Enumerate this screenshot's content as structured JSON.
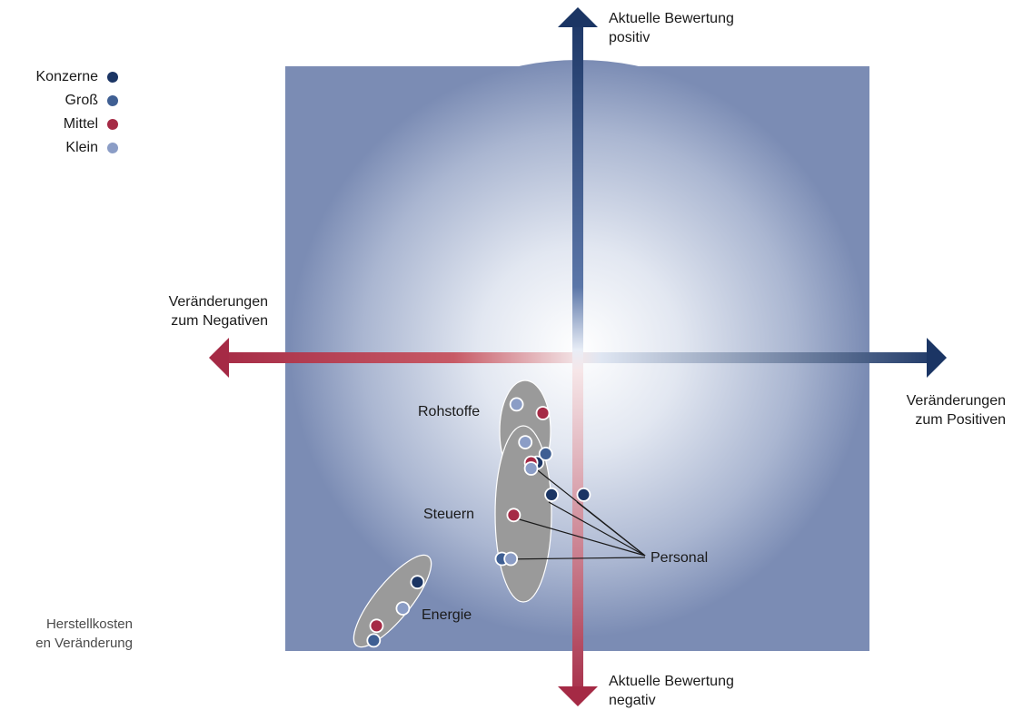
{
  "legend": {
    "items": [
      {
        "label": "Konzerne",
        "color": "#1b3564"
      },
      {
        "label": "Groß",
        "color": "#3f5f93"
      },
      {
        "label": "Mittel",
        "color": "#a52a45"
      },
      {
        "label": "Klein",
        "color": "#8b9dc6"
      }
    ]
  },
  "axes": {
    "top_line1": "Aktuelle Bewertung",
    "top_line2": "positiv",
    "bottom_line1": "Aktuelle Bewertung",
    "bottom_line2": "negativ",
    "left_line1": "Veränderungen",
    "left_line2": "zum Negativen",
    "right_line1": "Veränderungen",
    "right_line2": "zum Positiven"
  },
  "side_note": {
    "line1": "Herstellkosten",
    "line2": "en Veränderung"
  },
  "colors": {
    "panel": "#7b8cb4",
    "positive": "#1b3564",
    "negative": "#a52a45",
    "group_fill": "#9a9a9a"
  },
  "chart_data": {
    "type": "scatter",
    "x_meaning": "Veränderung",
    "y_meaning": "Aktuelle Bewertung",
    "xlim": [
      -1,
      1
    ],
    "ylim": [
      -1,
      1
    ],
    "grid": false,
    "legend_position": "top-left",
    "series": [
      {
        "name": "Konzerne",
        "points": [
          {
            "group": "Rohstoffe",
            "x": -0.14,
            "y": -0.36
          },
          {
            "group": "Personal",
            "x": -0.09,
            "y": -0.47
          },
          {
            "group": "Personal",
            "x": 0.02,
            "y": -0.47
          },
          {
            "group": "Energie",
            "x": -0.55,
            "y": -0.77
          }
        ]
      },
      {
        "name": "Groß",
        "points": [
          {
            "group": "Rohstoffe",
            "x": -0.11,
            "y": -0.33
          },
          {
            "group": "Steuern",
            "x": -0.26,
            "y": -0.69
          },
          {
            "group": "Energie",
            "x": -0.7,
            "y": -0.97
          }
        ]
      },
      {
        "name": "Mittel",
        "points": [
          {
            "group": "Rohstoffe",
            "x": -0.12,
            "y": -0.19
          },
          {
            "group": "Rohstoffe",
            "x": -0.16,
            "y": -0.36
          },
          {
            "group": "Steuern",
            "x": -0.22,
            "y": -0.54
          },
          {
            "group": "Energie",
            "x": -0.69,
            "y": -0.92
          }
        ]
      },
      {
        "name": "Klein",
        "points": [
          {
            "group": "Rohstoffe",
            "x": -0.21,
            "y": -0.16
          },
          {
            "group": "Rohstoffe",
            "x": -0.18,
            "y": -0.29
          },
          {
            "group": "Rohstoffe",
            "x": -0.16,
            "y": -0.38
          },
          {
            "group": "Steuern",
            "x": -0.23,
            "y": -0.69
          },
          {
            "group": "Energie",
            "x": -0.6,
            "y": -0.86
          }
        ]
      }
    ],
    "annotations": [
      {
        "text": "Rohstoffe"
      },
      {
        "text": "Steuern"
      },
      {
        "text": "Energie"
      },
      {
        "text": "Personal"
      }
    ]
  }
}
